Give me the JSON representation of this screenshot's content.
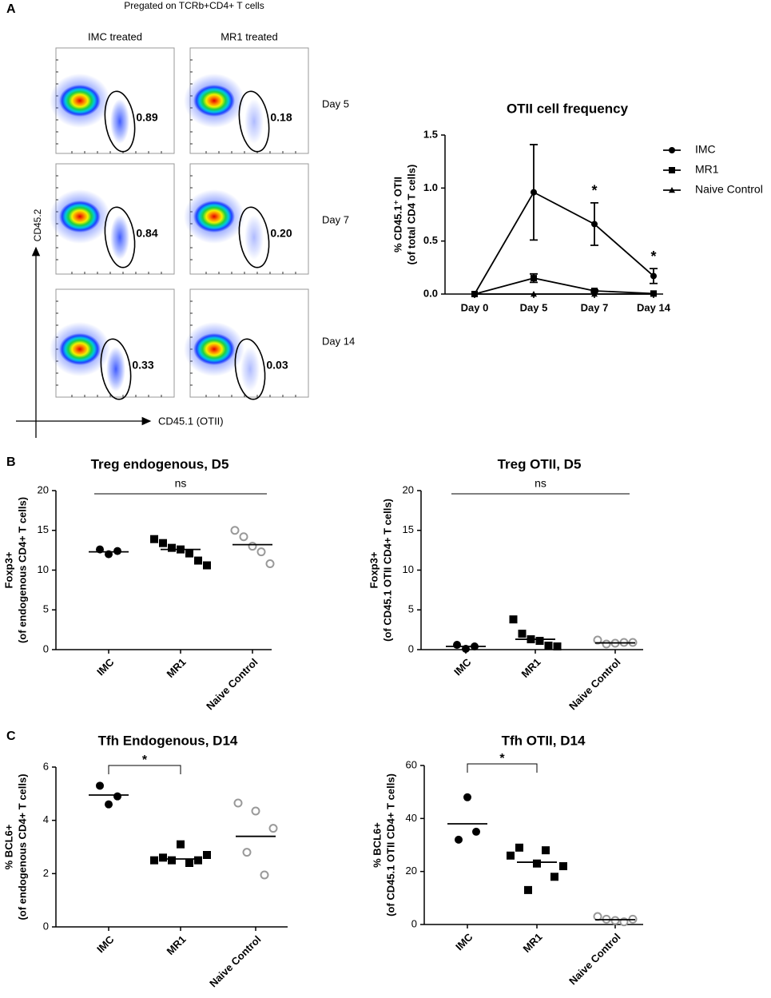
{
  "panel_labels": [
    "A",
    "B",
    "C"
  ],
  "flow": {
    "title": "Pregated on TCRb+CD4+ T cells",
    "columns": [
      "IMC treated",
      "MR1 treated"
    ],
    "rows": [
      "Day 5",
      "Day 7",
      "Day 14"
    ],
    "gates": [
      [
        "0.89",
        "0.18"
      ],
      [
        "0.84",
        "0.20"
      ],
      [
        "0.33",
        "0.03"
      ]
    ],
    "y_label": "CD45.2",
    "x_label": "CD45.1 (OTII)"
  },
  "chart_data": [
    {
      "type": "line",
      "title": "OTII cell frequency",
      "y_label": [
        "% CD45.1⁺ OTII",
        "(of total CD4 T cells)"
      ],
      "categories": [
        "Day 0",
        "Day 5",
        "Day 7",
        "Day 14"
      ],
      "series": [
        {
          "name": "IMC",
          "color": "#000000",
          "marker": "circle",
          "values": [
            0,
            0.96,
            0.66,
            0.17
          ],
          "errors": [
            0,
            0.45,
            0.2,
            0.07
          ]
        },
        {
          "name": "MR1",
          "color": "#000000",
          "marker": "square",
          "values": [
            0,
            0.15,
            0.03,
            0.005
          ],
          "errors": [
            0,
            0.04,
            0.01,
            0
          ]
        },
        {
          "name": "Naive Control",
          "color": "#000000",
          "marker": "triangle",
          "values": [
            0,
            0,
            0,
            0
          ],
          "errors": [
            0,
            0,
            0,
            0
          ]
        }
      ],
      "annotations": [
        {
          "text": "*",
          "category": "Day 7"
        },
        {
          "text": "*",
          "category": "Day 14"
        }
      ],
      "ylim": [
        0,
        1.5
      ],
      "yticks": [
        {
          "value": 0,
          "label": "0.0"
        },
        0.5,
        {
          "value": 1,
          "label": "1.0"
        },
        1.5
      ],
      "legend": "right"
    },
    {
      "type": "dot",
      "title": "Treg endogenous, D5",
      "y_label": [
        "Foxp3+",
        "(of endogenous CD4+ T cells)"
      ],
      "categories": [
        "IMC",
        "MR1",
        "Naive Control"
      ],
      "points": [
        [
          12.6,
          12.0,
          12.4
        ],
        [
          13.9,
          13.4,
          12.8,
          12.6,
          12.1,
          11.2,
          10.6
        ],
        [
          15.0,
          14.2,
          13.0,
          12.3,
          10.8
        ]
      ],
      "means": [
        12.3,
        12.6,
        13.2
      ],
      "colors": [
        "#000000",
        "#000000",
        "#999999"
      ],
      "markers": [
        "circle",
        "square",
        "open-circle"
      ],
      "bracket": {
        "label": "ns",
        "span": [
          "IMC",
          "Naive Control"
        ]
      },
      "ylim": [
        0,
        20
      ],
      "yticks": [
        0,
        5,
        10,
        15,
        20
      ]
    },
    {
      "type": "dot",
      "title": "Treg OTII, D5",
      "y_label": [
        "Foxp3+",
        "(of CD45.1 OTII CD4+ T cells)"
      ],
      "categories": [
        "IMC",
        "MR1",
        "Naive Control"
      ],
      "points": [
        [
          0.6,
          0.1,
          0.4
        ],
        [
          3.8,
          2.0,
          1.3,
          1.1,
          0.5,
          0.4
        ],
        [
          1.2,
          0.7,
          0.8,
          0.9,
          0.9
        ]
      ],
      "means": [
        0.4,
        1.3,
        0.85
      ],
      "colors": [
        "#000000",
        "#000000",
        "#999999"
      ],
      "markers": [
        "circle",
        "square",
        "open-circle"
      ],
      "bracket": {
        "label": "ns",
        "span": [
          "IMC",
          "Naive Control"
        ]
      },
      "ylim": [
        0,
        20
      ],
      "yticks": [
        0,
        5,
        10,
        15,
        20
      ]
    },
    {
      "type": "dot",
      "title": "Tfh Endogenous, D14",
      "y_label": [
        "% BCL6+",
        "(of endogenous CD4+ T cells)"
      ],
      "categories": [
        "IMC",
        "MR1",
        "Naive Control"
      ],
      "points": [
        [
          5.3,
          4.6,
          4.9
        ],
        [
          2.5,
          2.6,
          2.5,
          3.1,
          2.4,
          2.5,
          2.7
        ],
        [
          4.65,
          2.8,
          4.35,
          1.95,
          3.7
        ]
      ],
      "means": [
        4.95,
        2.55,
        3.4
      ],
      "colors": [
        "#000000",
        "#000000",
        "#999999"
      ],
      "markers": [
        "circle",
        "square",
        "open-circle"
      ],
      "bracket": {
        "label": "*",
        "span": [
          "IMC",
          "MR1"
        ]
      },
      "ylim": [
        0,
        6
      ],
      "yticks": [
        0,
        2,
        4,
        6
      ]
    },
    {
      "type": "dot",
      "title": "Tfh OTII, D14",
      "y_label": [
        "% BCL6+",
        "(of CD45.1 OTII CD4+ T cells)"
      ],
      "categories": [
        "IMC",
        "MR1",
        "Naive Control"
      ],
      "points": [
        [
          32,
          48,
          35
        ],
        [
          26,
          29,
          13,
          23,
          28,
          18,
          22
        ],
        [
          3,
          2,
          1.5,
          1,
          2
        ]
      ],
      "means": [
        38,
        23.5,
        1.8
      ],
      "colors": [
        "#000000",
        "#000000",
        "#999999"
      ],
      "markers": [
        "circle",
        "square",
        "open-circle"
      ],
      "bracket": {
        "label": "*",
        "span": [
          "IMC",
          "MR1"
        ]
      },
      "ylim": [
        0,
        60
      ],
      "yticks": [
        0,
        20,
        40,
        60
      ]
    }
  ]
}
